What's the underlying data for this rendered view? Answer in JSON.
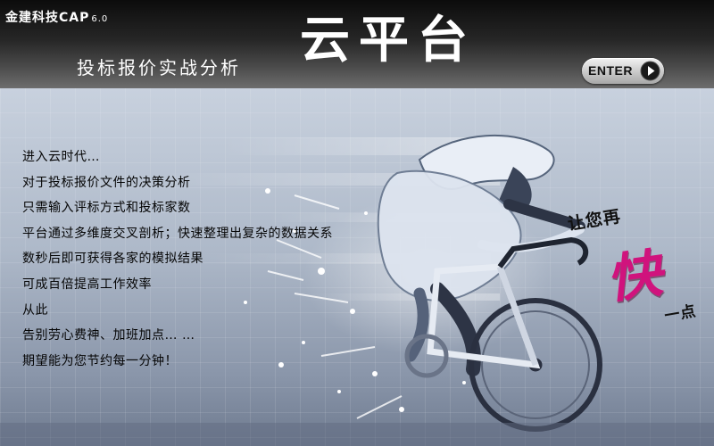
{
  "header": {
    "brand": "金建科技CAP",
    "version": "6.0",
    "subtitle": "投标报价实战分析",
    "title": "云平台",
    "enter_label": "ENTER"
  },
  "intro": {
    "lines": [
      "进入云时代…",
      "对于投标报价文件的决策分析",
      "只需输入评标方式和投标家数",
      "平台通过多维度交叉剖析；快速整理出复杂的数据关系",
      "数秒后即可获得各家的模拟结果",
      "可成百倍提高工作效率",
      "从此",
      "告别劳心费神、加班加点… …",
      "期望能为您节约每一分钟！"
    ]
  },
  "slogan": {
    "top": "让您再",
    "big": "快",
    "bottom": "一点"
  },
  "colors": {
    "accent": "#d0137d",
    "header_dark": "#0c0c0c",
    "hero_bg": "#aeb9c9"
  }
}
